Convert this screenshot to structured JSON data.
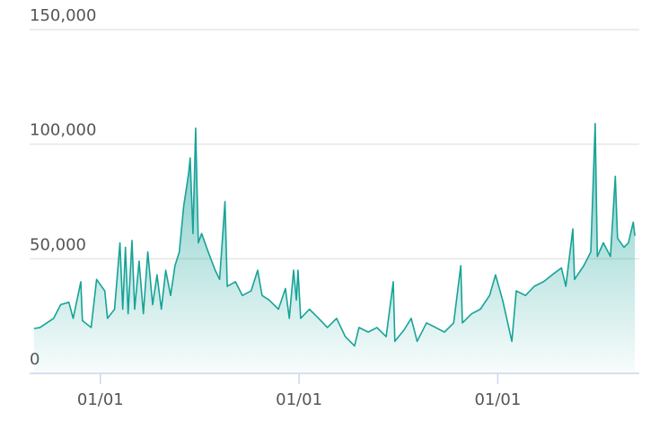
{
  "chart_data": {
    "type": "area",
    "color": "#17a398",
    "grid": true,
    "x": [
      -122,
      -111,
      -86,
      -73,
      -58,
      -50,
      -36,
      -33,
      -17,
      -7,
      8,
      13,
      26,
      36,
      41,
      46,
      51,
      58,
      63,
      71,
      79,
      87,
      96,
      104,
      112,
      120,
      129,
      137,
      145,
      153,
      162,
      165,
      170,
      175,
      180,
      186,
      198,
      211,
      219,
      229,
      233,
      248,
      261,
      277,
      289,
      297,
      310,
      327,
      340,
      347,
      355,
      360,
      363,
      368,
      384,
      401,
      417,
      434,
      450,
      467,
      475,
      492,
      508,
      525,
      538,
      541,
      558,
      571,
      582,
      599,
      616,
      632,
      649,
      662,
      665,
      682,
      698,
      715,
      726,
      739,
      756,
      764,
      781,
      797,
      814,
      830,
      847,
      855,
      868,
      871,
      888,
      901,
      909,
      913,
      924,
      937,
      946,
      950,
      962,
      970,
      979,
      982
    ],
    "values": [
      19600,
      20000,
      24000,
      30000,
      31000,
      24000,
      40000,
      23000,
      20000,
      41000,
      36000,
      24000,
      28000,
      57000,
      28000,
      55000,
      26000,
      58000,
      28000,
      49000,
      26000,
      53000,
      30000,
      43000,
      28000,
      45000,
      34000,
      47000,
      53000,
      73000,
      87000,
      94000,
      61000,
      107000,
      57000,
      61000,
      53000,
      45000,
      41000,
      75000,
      38000,
      40000,
      34000,
      36000,
      45000,
      34000,
      32000,
      28000,
      37000,
      24000,
      45000,
      32000,
      45000,
      24000,
      28000,
      24000,
      20000,
      24000,
      16000,
      12000,
      20000,
      18000,
      20000,
      16000,
      40000,
      14000,
      19000,
      24000,
      14000,
      22000,
      20000,
      18000,
      22000,
      47000,
      22000,
      26000,
      28000,
      34000,
      43000,
      32000,
      14000,
      36000,
      34000,
      38000,
      40000,
      43000,
      46000,
      38000,
      63000,
      41000,
      47000,
      53000,
      109000,
      51000,
      57000,
      51000,
      86000,
      59000,
      55000,
      57000,
      66000,
      60000
    ],
    "xlim": [
      -130,
      990
    ],
    "xticks": [
      {
        "value": 0,
        "label": "01/01"
      },
      {
        "value": 365,
        "label": "01/01"
      },
      {
        "value": 730,
        "label": "01/01"
      }
    ],
    "ylim": [
      0,
      150000
    ],
    "yticks": [
      0,
      {
        "value": 50000,
        "label": "50,000"
      },
      {
        "value": 100000,
        "label": "100,000"
      },
      {
        "value": 150000,
        "label": "150,000"
      }
    ]
  }
}
